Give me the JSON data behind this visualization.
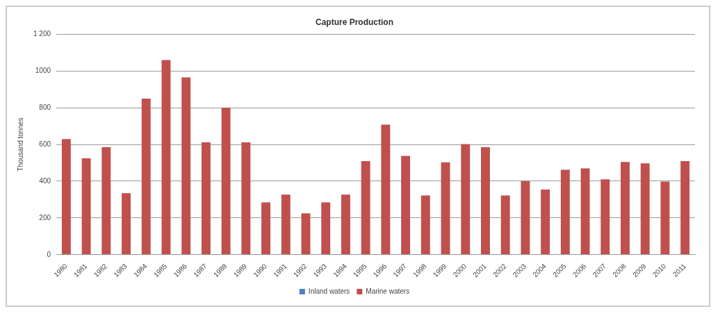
{
  "chart_data": {
    "type": "bar",
    "title": "Capture Production",
    "ylabel": "Thousand tonnes",
    "categories": [
      "1980",
      "1981",
      "1982",
      "1983",
      "1984",
      "1985",
      "1986",
      "1987",
      "1988",
      "1989",
      "1990",
      "1991",
      "1992",
      "1993",
      "1994",
      "1995",
      "1996",
      "1997",
      "1998",
      "1999",
      "2000",
      "2001",
      "2002",
      "2003",
      "2004",
      "2005",
      "2006",
      "2007",
      "2008",
      "2009",
      "2010",
      "2011"
    ],
    "stacked": true,
    "series": [
      {
        "name": "Inland waters",
        "color": "#4f81bd",
        "values": [
          0,
          0,
          0,
          0,
          0,
          0,
          0,
          0,
          0,
          0,
          0,
          0,
          0,
          0,
          0,
          0,
          0,
          0,
          0,
          0,
          0,
          0,
          0,
          0,
          0,
          0,
          0,
          0,
          0,
          0,
          0,
          0
        ]
      },
      {
        "name": "Marine waters",
        "color": "#c0504d",
        "values": [
          630,
          525,
          585,
          335,
          850,
          1060,
          965,
          612,
          800,
          612,
          285,
          327,
          225,
          285,
          327,
          510,
          708,
          538,
          322,
          503,
          602,
          585,
          322,
          400,
          355,
          462,
          470,
          410,
          505,
          497,
          398,
          510
        ]
      }
    ],
    "ylim": [
      0,
      1200
    ],
    "yticks": [
      0,
      {
        "value": 200,
        "label": "200"
      },
      400,
      600,
      800,
      1000,
      {
        "value": 1200,
        "label": "1 200"
      }
    ],
    "grid": "y",
    "legend": "bottom"
  }
}
